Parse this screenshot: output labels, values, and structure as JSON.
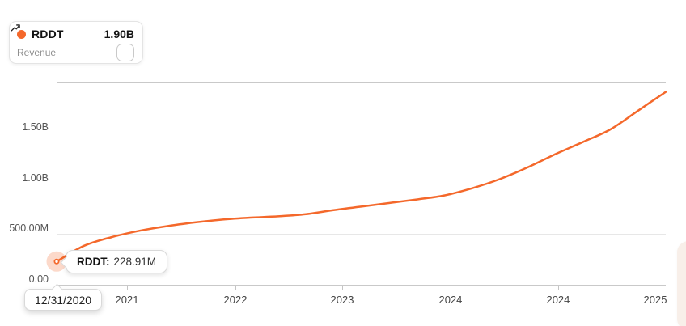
{
  "legend": {
    "symbol": "RDDT",
    "value": "1.90B",
    "metric": "Revenue",
    "chart_icon": "trend-up-icon"
  },
  "tooltip": {
    "label": "RDDT:",
    "value": "228.91M"
  },
  "date_tooltip": {
    "date": "12/31/2020"
  },
  "colors": {
    "accent": "#f4682b",
    "halo": "rgba(244,104,43,0.25)",
    "gridline": "#e7e7e7",
    "axis": "#c9c9c9",
    "tick": "#c4c4c4"
  },
  "chart_data": {
    "type": "line",
    "series": [
      {
        "name": "RDDT Revenue",
        "unit": "USD millions",
        "values": [
          228.91,
          385,
          470,
          532,
          578,
          614,
          642,
          661,
          674,
          695,
          735,
          770,
          805,
          840,
          880,
          950,
          1040,
          1155,
          1285,
          1405,
          1530,
          1715,
          1900
        ]
      }
    ],
    "start_point": {
      "date": "12/31/2020",
      "value_label": "228.91M",
      "value_millions": 228.91
    },
    "latest_value_label": "1.90B",
    "ylim": [
      0,
      2000
    ],
    "grid": "horizontal",
    "legend_position": "top-left",
    "y_ticks": [
      {
        "value": 0,
        "label": "0.00"
      },
      {
        "value": 500,
        "label": "500.00M"
      },
      {
        "value": 1000,
        "label": "1.00B"
      },
      {
        "value": 1500,
        "label": "1.50B"
      }
    ],
    "x_ticks": [
      {
        "label": "2021",
        "f": 0.1155,
        "tick": true
      },
      {
        "label": "2022",
        "f": 0.2935,
        "tick": true
      },
      {
        "label": "2023",
        "f": 0.4688,
        "tick": true
      },
      {
        "label": "2024",
        "f": 0.6467,
        "tick": true
      },
      {
        "label": "2024",
        "f": 0.8233,
        "tick": true
      },
      {
        "label": "2025",
        "f": 0.9827,
        "tick": false
      }
    ]
  }
}
